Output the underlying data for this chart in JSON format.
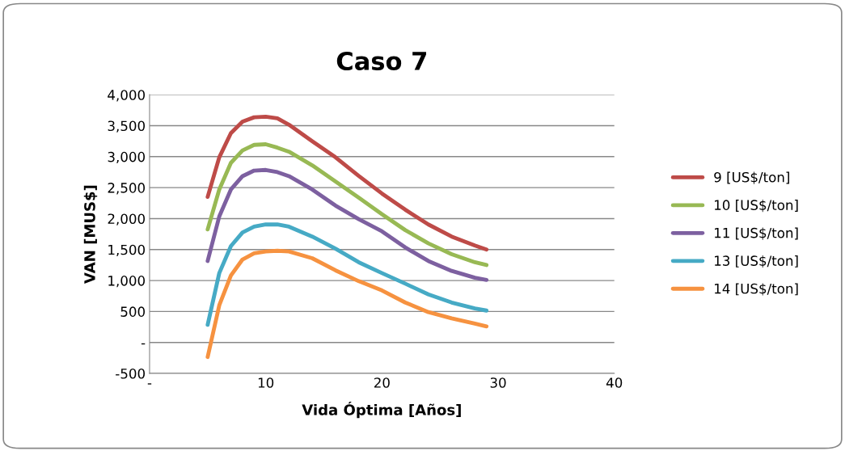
{
  "chart_data": {
    "type": "line",
    "title": "Caso 7",
    "xlabel": "Vida Óptima [Años]",
    "ylabel": "VAN [MUS$]",
    "x": [
      5,
      6,
      7,
      8,
      9,
      10,
      11,
      12,
      14,
      16,
      18,
      20,
      22,
      24,
      26,
      28,
      29
    ],
    "series": [
      {
        "name": "9 [US$/ton]",
        "color": "#be4b48",
        "values": [
          2350,
          2990,
          3380,
          3565,
          3635,
          3645,
          3620,
          3515,
          3250,
          2990,
          2690,
          2405,
          2145,
          1905,
          1710,
          1565,
          1500
        ]
      },
      {
        "name": "10 [US$/ton]",
        "color": "#98b954",
        "values": [
          1825,
          2470,
          2900,
          3100,
          3190,
          3200,
          3145,
          3080,
          2860,
          2600,
          2340,
          2070,
          1815,
          1600,
          1425,
          1295,
          1250
        ]
      },
      {
        "name": "11 [US$/ton]",
        "color": "#7d60a0",
        "values": [
          1315,
          2035,
          2470,
          2685,
          2775,
          2785,
          2750,
          2685,
          2470,
          2210,
          1990,
          1795,
          1535,
          1315,
          1155,
          1045,
          1010
        ]
      },
      {
        "name": "13 [US$/ton]",
        "color": "#46aac5",
        "values": [
          285,
          1120,
          1555,
          1775,
          1870,
          1905,
          1905,
          1870,
          1710,
          1515,
          1295,
          1120,
          950,
          775,
          645,
          550,
          515
        ]
      },
      {
        "name": "14 [US$/ton]",
        "color": "#f69240",
        "values": [
          -235,
          600,
          1080,
          1340,
          1440,
          1470,
          1480,
          1470,
          1360,
          1165,
          990,
          840,
          645,
          490,
          390,
          305,
          260
        ]
      }
    ],
    "xlim": [
      0,
      40
    ],
    "xticks": [
      {
        "value": 0,
        "label": "-"
      },
      10,
      20,
      30,
      40
    ],
    "ylim": [
      -500,
      4000
    ],
    "yticks": [
      {
        "value": -500,
        "label": "-500"
      },
      {
        "value": 0,
        "label": "-"
      },
      {
        "value": 500,
        "label": "500"
      },
      {
        "value": 1000,
        "label": "1,000"
      },
      {
        "value": 1500,
        "label": "1,500"
      },
      {
        "value": 2000,
        "label": "2,000"
      },
      {
        "value": 2500,
        "label": "2,500"
      },
      {
        "value": 3000,
        "label": "3,000"
      },
      {
        "value": 3500,
        "label": "3,500"
      },
      {
        "value": 4000,
        "label": "4,000"
      }
    ],
    "grid": "y",
    "legend": "right",
    "marker": "none",
    "line_style": "solid"
  }
}
